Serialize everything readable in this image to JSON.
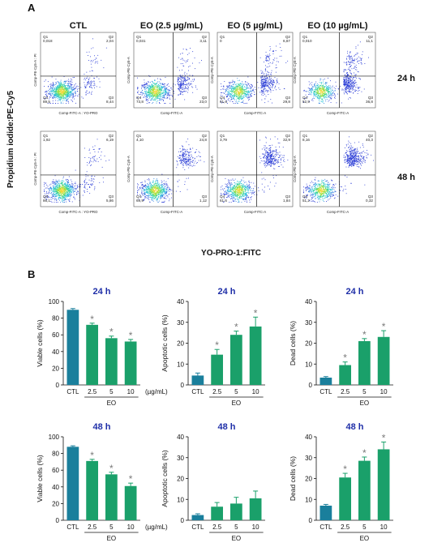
{
  "panel_a": {
    "letter": "A",
    "columns": [
      "CTL",
      "EO (2.5 µg/mL)",
      "EO (5 µg/mL)",
      "EO (10 µg/mL)"
    ],
    "rows": [
      "24 h",
      "48 h"
    ],
    "y_axis_label": "Propidium iodide:PE-Cy5",
    "x_axis_label": "YO-PRO-1:FITC",
    "plot_x_label": "Comp-FITC-A",
    "plot_x_label_ctl": "Comp-FITC-A : YO-PRO",
    "plot_y_label": "Comp-PE-Cy5-A",
    "plot_y_label_ctl": "Comp-PE-Cy5-A : PI",
    "quadrant_names": [
      "Q1",
      "Q2",
      "Q3",
      "Q4"
    ],
    "plots": [
      {
        "row": 0,
        "col": 0,
        "q1": "0,018",
        "q2": "2,04",
        "q3": "8,44",
        "q4": "89,5"
      },
      {
        "row": 0,
        "col": 1,
        "q1": "0,031",
        "q2": "3,11",
        "q3": "23,0",
        "q4": "73,8"
      },
      {
        "row": 0,
        "col": 2,
        "q1": "0",
        "q2": "6,67",
        "q3": "29,8",
        "q4": "61,6"
      },
      {
        "row": 0,
        "col": 3,
        "q1": "0,010",
        "q2": "11,1",
        "q3": "36,8",
        "q4": "52,9"
      },
      {
        "row": 1,
        "col": 0,
        "q1": "1,92",
        "q2": "6,19",
        "q3": "5,86",
        "q4": "86,1"
      },
      {
        "row": 1,
        "col": 1,
        "q1": "4,10",
        "q2": "24,8",
        "q3": "1,12",
        "q4": "69,9"
      },
      {
        "row": 1,
        "col": 2,
        "q1": "3,79",
        "q2": "32,9",
        "q3": "1,84",
        "q4": "61,6"
      },
      {
        "row": 1,
        "col": 3,
        "q1": "8,16",
        "q2": "40,3",
        "q3": "0,32",
        "q4": "51,2"
      }
    ]
  },
  "panel_b": {
    "letter": "B",
    "group_label": "EO",
    "unit_label": "(µg/mL)",
    "colors": {
      "ctl": "#1a7f9c",
      "eo": "#1aa06a",
      "star": "#7a7a7a"
    }
  },
  "chart_data": [
    {
      "type": "bar",
      "title": "24 h",
      "ylabel": "Viable cells (%)",
      "ylim": [
        0,
        100
      ],
      "yticks": [
        0,
        20,
        40,
        60,
        80,
        100
      ],
      "categories": [
        "CTL",
        "2.5",
        "5",
        "10"
      ],
      "values": [
        90,
        72,
        56,
        52
      ],
      "errors": [
        1.5,
        2,
        2.5,
        2.5
      ],
      "significant": [
        false,
        true,
        true,
        true
      ]
    },
    {
      "type": "bar",
      "title": "24 h",
      "ylabel": "Apoptotic cells (%)",
      "ylim": [
        0,
        40
      ],
      "yticks": [
        0,
        10,
        20,
        30,
        40
      ],
      "categories": [
        "CTL",
        "2.5",
        "5",
        "10"
      ],
      "values": [
        4.5,
        14.5,
        24,
        28
      ],
      "errors": [
        1.2,
        2.5,
        1.8,
        4.5
      ],
      "significant": [
        false,
        true,
        true,
        true
      ]
    },
    {
      "type": "bar",
      "title": "24 h",
      "ylabel": "Dead cells (%)",
      "ylim": [
        0,
        40
      ],
      "yticks": [
        0,
        10,
        20,
        30,
        40
      ],
      "categories": [
        "CTL",
        "2.5",
        "5",
        "10"
      ],
      "values": [
        3.5,
        9.5,
        21,
        23
      ],
      "errors": [
        0.5,
        1.5,
        1.2,
        3
      ],
      "significant": [
        false,
        true,
        true,
        true
      ]
    },
    {
      "type": "bar",
      "title": "48 h",
      "ylabel": "Viable cells (%)",
      "ylim": [
        0,
        100
      ],
      "yticks": [
        0,
        20,
        40,
        60,
        80,
        100
      ],
      "categories": [
        "CTL",
        "2.5",
        "5",
        "10"
      ],
      "values": [
        88,
        71,
        55,
        41
      ],
      "errors": [
        1.2,
        2,
        2.5,
        3.5
      ],
      "significant": [
        false,
        true,
        true,
        true
      ]
    },
    {
      "type": "bar",
      "title": "48 h",
      "ylabel": "Apoptotic cells (%)",
      "ylim": [
        0,
        40
      ],
      "yticks": [
        0,
        10,
        20,
        30,
        40
      ],
      "categories": [
        "CTL",
        "2.5",
        "5",
        "10"
      ],
      "values": [
        2.5,
        6.5,
        8,
        10.5
      ],
      "errors": [
        0.6,
        2,
        3,
        3.5
      ],
      "significant": [
        false,
        false,
        false,
        false
      ]
    },
    {
      "type": "bar",
      "title": "48 h",
      "ylabel": "Dead cells (%)",
      "ylim": [
        0,
        40
      ],
      "yticks": [
        0,
        10,
        20,
        30,
        40
      ],
      "categories": [
        "CTL",
        "2.5",
        "5",
        "10"
      ],
      "values": [
        7,
        20.5,
        28.5,
        34
      ],
      "errors": [
        0.6,
        2,
        1.8,
        3.5
      ],
      "significant": [
        false,
        true,
        true,
        true
      ]
    }
  ]
}
